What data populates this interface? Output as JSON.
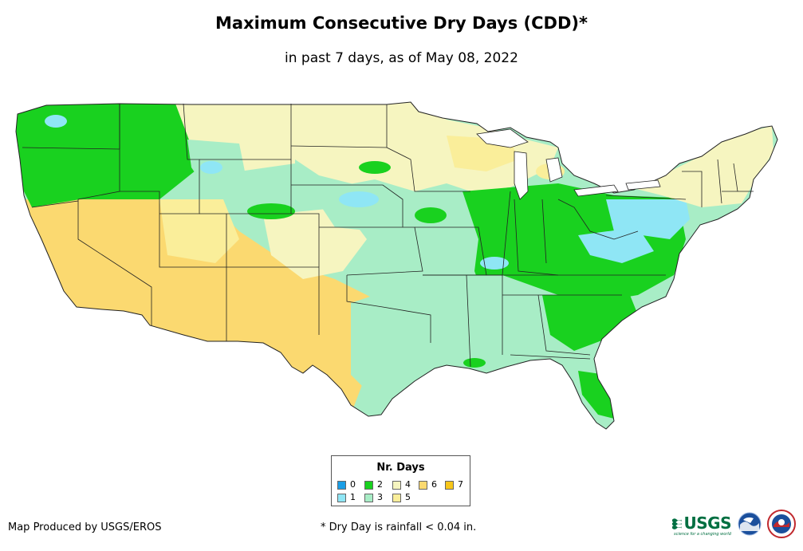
{
  "title": "Maximum Consecutive Dry Days (CDD)*",
  "subtitle": "in past 7 days, as of May 08, 2022",
  "legend": {
    "title": "Nr. Days",
    "items": [
      {
        "label": "0",
        "color": "#1a9ee6"
      },
      {
        "label": "1",
        "color": "#8fe6f5"
      },
      {
        "label": "2",
        "color": "#19d11f"
      },
      {
        "label": "3",
        "color": "#a8edc6"
      },
      {
        "label": "4",
        "color": "#f6f5c0"
      },
      {
        "label": "5",
        "color": "#faee9a"
      },
      {
        "label": "6",
        "color": "#fbd970"
      },
      {
        "label": "7",
        "color": "#f7c619"
      }
    ]
  },
  "footer": {
    "credit": "Map Produced by USGS/EROS",
    "note": "* Dry Day is rainfall < 0.04 in."
  },
  "logos": {
    "usgs": "USGS",
    "usgs_tagline": "science for a changing world",
    "noaa": "noaa-logo",
    "nws": "nws-logo"
  },
  "map": {
    "region": "Contiguous United States",
    "colors": {
      "border": "#222222",
      "water": "#ffffff"
    }
  }
}
